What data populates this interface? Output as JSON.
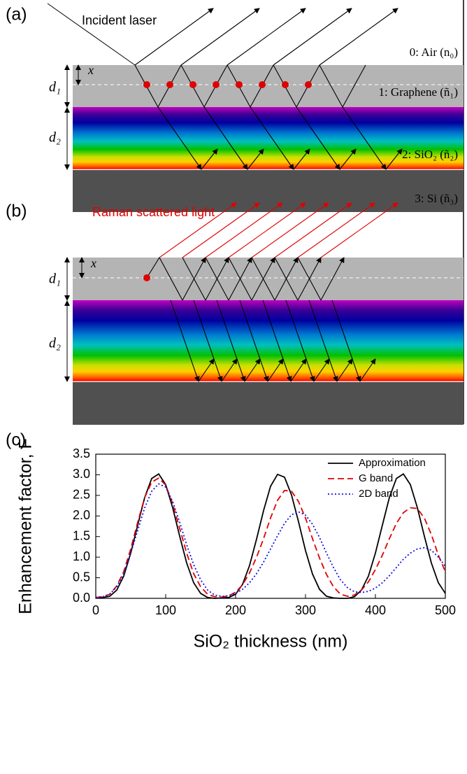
{
  "panel_a": {
    "label": "(a)",
    "incident": "Incident laser",
    "air": "0: Air (n₀)",
    "graphene": "1: Graphene (ñ₁)",
    "sio2": "2: SiO₂ (ñ₂)",
    "si": "3: Si (ñ₃)",
    "x": "x",
    "d1": "d₁",
    "d2": "d₂"
  },
  "panel_b": {
    "label": "(b)",
    "raman": "Raman scattered light",
    "x": "x",
    "d1": "d₁",
    "d2": "d₂"
  },
  "chart_data": {
    "type": "line",
    "label": "(c)",
    "x_label": "SiO₂ thickness (nm)",
    "y_label": "Enhancement factor, F",
    "x": [
      0,
      10,
      20,
      30,
      40,
      50,
      60,
      70,
      80,
      90,
      100,
      110,
      120,
      130,
      140,
      150,
      160,
      170,
      180,
      190,
      200,
      210,
      220,
      230,
      240,
      250,
      260,
      270,
      280,
      290,
      300,
      310,
      320,
      330,
      340,
      350,
      360,
      370,
      380,
      390,
      400,
      410,
      420,
      430,
      440,
      450,
      460,
      470,
      480,
      490,
      500
    ],
    "series": [
      {
        "name": "Approximation",
        "color": "#000000",
        "dash": "solid",
        "values": [
          0.02,
          0.02,
          0.05,
          0.2,
          0.54,
          1.1,
          1.78,
          2.45,
          2.91,
          3.02,
          2.76,
          2.2,
          1.51,
          0.86,
          0.38,
          0.12,
          0.02,
          0.0,
          0.01,
          0.02,
          0.1,
          0.34,
          0.8,
          1.44,
          2.13,
          2.72,
          3.01,
          2.94,
          2.51,
          1.86,
          1.16,
          0.59,
          0.22,
          0.05,
          0.01,
          0.0,
          0.0,
          0.04,
          0.2,
          0.54,
          1.1,
          1.78,
          2.45,
          2.91,
          3.02,
          2.76,
          2.2,
          1.51,
          0.86,
          0.38,
          0.12
        ]
      },
      {
        "name": "G band",
        "color": "#e00000",
        "dash": "dashed",
        "values": [
          0.02,
          0.04,
          0.1,
          0.3,
          0.65,
          1.2,
          1.85,
          2.45,
          2.82,
          2.92,
          2.75,
          2.3,
          1.7,
          1.1,
          0.6,
          0.28,
          0.1,
          0.04,
          0.03,
          0.06,
          0.15,
          0.33,
          0.62,
          1.0,
          1.45,
          1.95,
          2.38,
          2.62,
          2.6,
          2.35,
          1.95,
          1.45,
          0.98,
          0.58,
          0.28,
          0.1,
          0.05,
          0.08,
          0.2,
          0.4,
          0.7,
          1.05,
          1.45,
          1.82,
          2.08,
          2.2,
          2.18,
          1.95,
          1.55,
          1.05,
          0.65
        ]
      },
      {
        "name": "2D band",
        "color": "#1010e0",
        "dash": "dotted",
        "values": [
          0.02,
          0.04,
          0.1,
          0.28,
          0.6,
          1.1,
          1.65,
          2.2,
          2.6,
          2.78,
          2.7,
          2.35,
          1.85,
          1.3,
          0.82,
          0.45,
          0.2,
          0.08,
          0.05,
          0.06,
          0.12,
          0.22,
          0.38,
          0.6,
          0.88,
          1.2,
          1.52,
          1.82,
          2.03,
          2.1,
          2.02,
          1.8,
          1.48,
          1.1,
          0.75,
          0.45,
          0.26,
          0.16,
          0.14,
          0.17,
          0.25,
          0.38,
          0.55,
          0.75,
          0.95,
          1.1,
          1.2,
          1.23,
          1.17,
          1.0,
          0.78
        ]
      }
    ],
    "xlim": [
      0,
      500
    ],
    "xticks": [
      0,
      100,
      200,
      300,
      400,
      500
    ],
    "ylim": [
      0,
      3.5
    ],
    "yticks": [
      {
        "value": 0,
        "label": "0.0"
      },
      0.5,
      {
        "value": 1,
        "label": "1.0"
      },
      1.5,
      {
        "value": 2,
        "label": "2.0"
      },
      2.5,
      {
        "value": 3,
        "label": "3.0"
      },
      3.5
    ],
    "legend": "upper right"
  }
}
